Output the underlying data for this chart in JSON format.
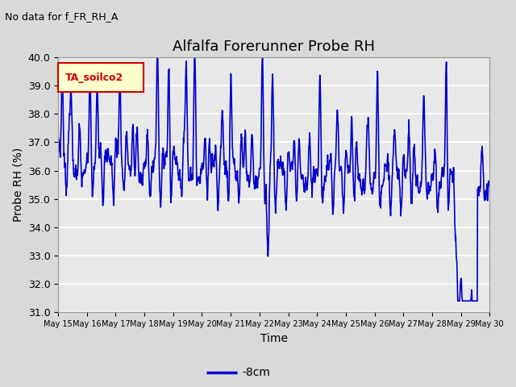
{
  "title": "Alfalfa Forerunner Probe RH",
  "no_data_label": "No data for f_FR_RH_A",
  "ylabel": "Probe RH (%)",
  "xlabel": "Time",
  "legend_label": "-8cm",
  "ylim": [
    31.0,
    40.0
  ],
  "yticks": [
    31.0,
    32.0,
    33.0,
    34.0,
    35.0,
    36.0,
    37.0,
    38.0,
    39.0,
    40.0
  ],
  "line_color": "#0000cc",
  "line_width": 1.2,
  "bg_color": "#d9d9d9",
  "plot_bg_color": "#e8e8e8",
  "legend_box_color": "#ffffcc",
  "legend_box_edge": "#cc0000",
  "legend_text": "TA_soilco2",
  "title_fontsize": 13,
  "label_fontsize": 10,
  "tick_fontsize": 9,
  "x_tick_days": [
    15,
    16,
    17,
    18,
    19,
    20,
    21,
    22,
    23,
    24,
    25,
    26,
    27,
    28,
    29,
    30
  ]
}
